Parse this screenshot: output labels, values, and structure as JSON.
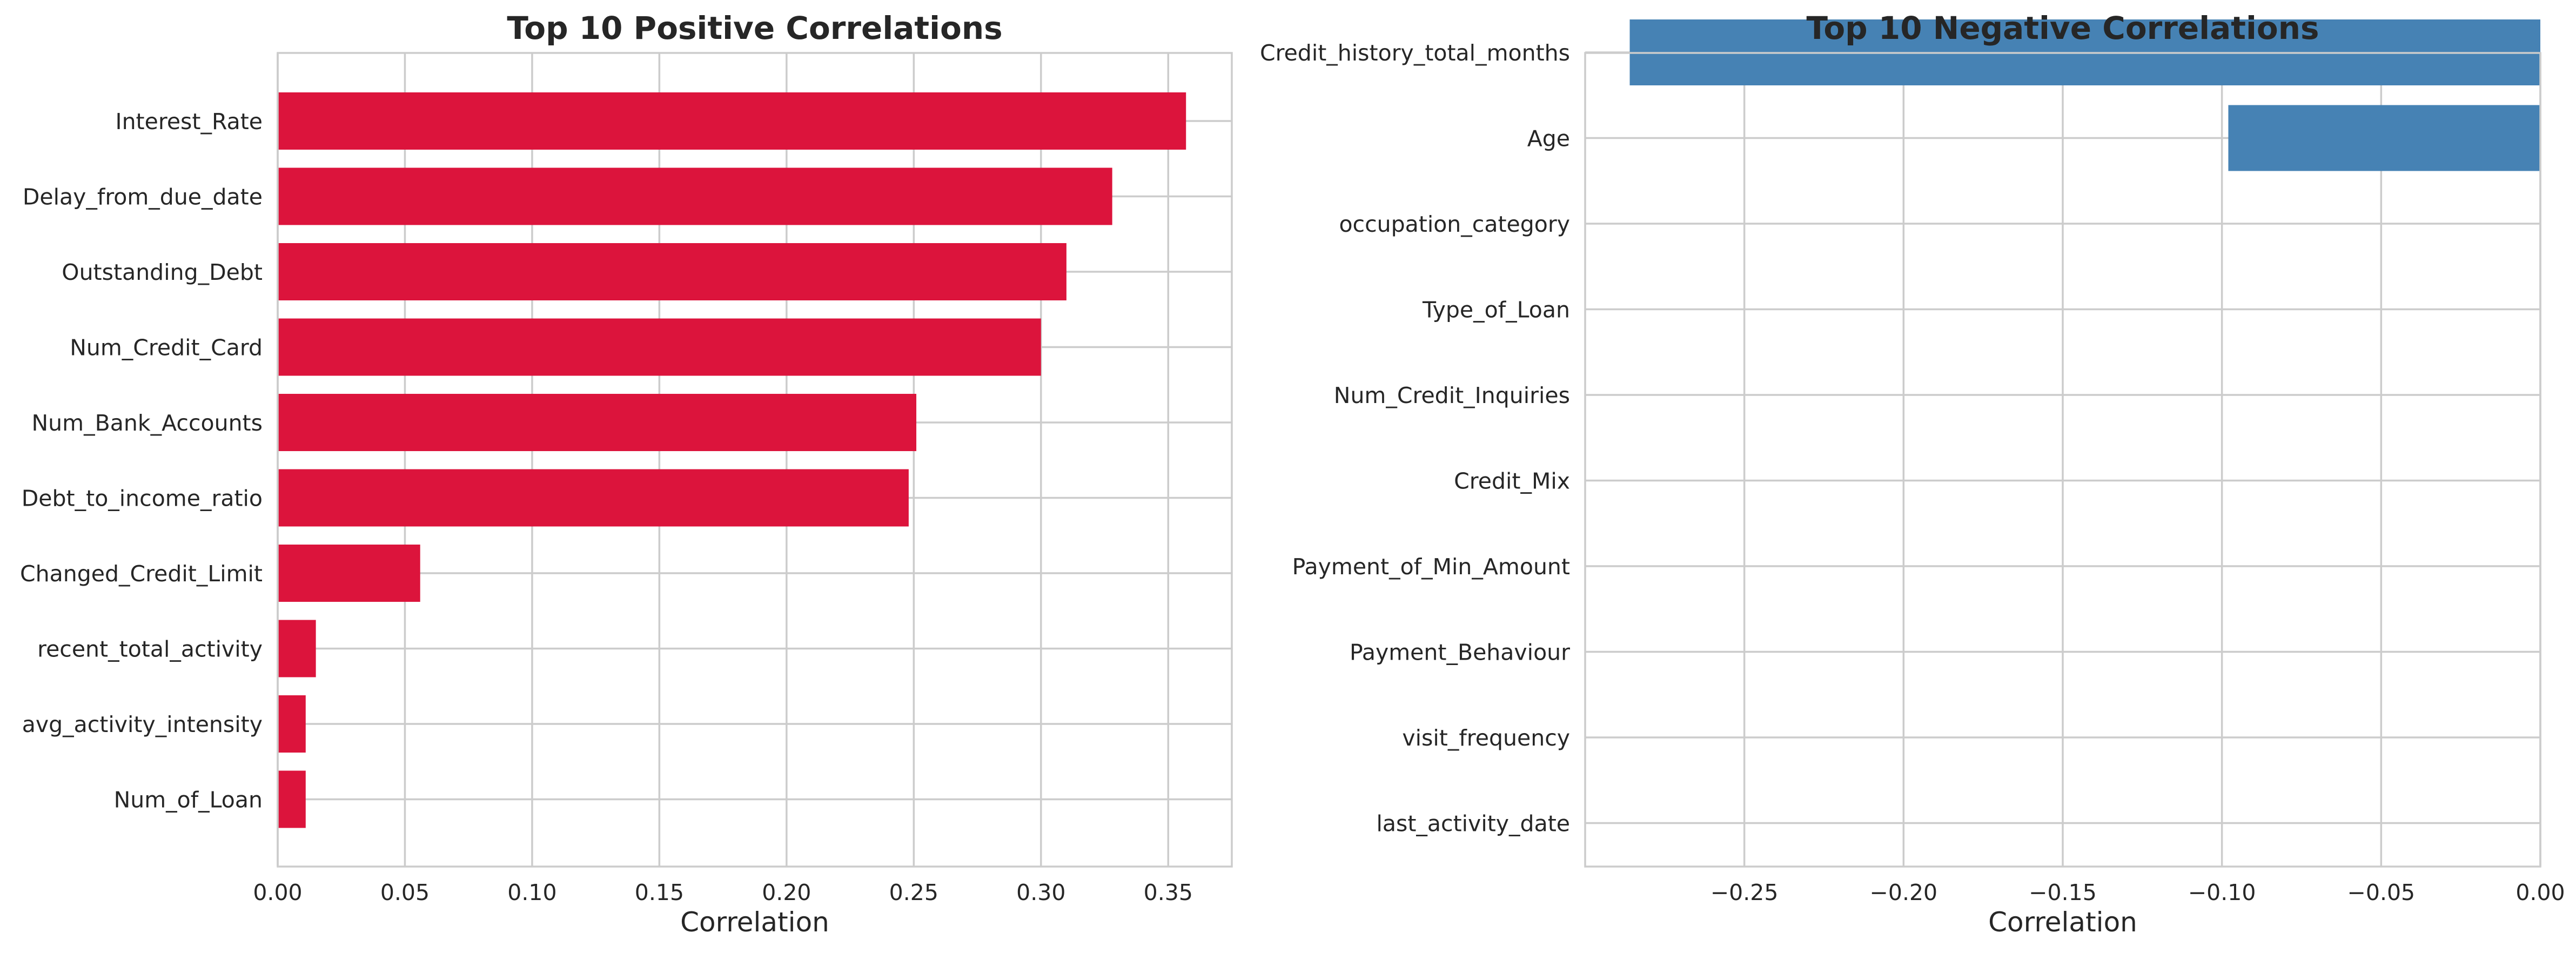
{
  "chart_data": [
    {
      "type": "bar",
      "orientation": "horizontal",
      "title": "Top 10 Positive Correlations",
      "xlabel": "Correlation",
      "ylabel": "",
      "color": "#dc143c",
      "xlim": [
        0,
        0.375
      ],
      "xticks": [
        "0.00",
        "0.05",
        "0.10",
        "0.15",
        "0.20",
        "0.25",
        "0.30",
        "0.35"
      ],
      "categories": [
        "Interest_Rate",
        "Delay_from_due_date",
        "Outstanding_Debt",
        "Num_Credit_Card",
        "Num_Bank_Accounts",
        "Debt_to_income_ratio",
        "Changed_Credit_Limit",
        "recent_total_activity",
        "avg_activity_intensity",
        "Num_of_Loan"
      ],
      "values": [
        0.357,
        0.328,
        0.31,
        0.3,
        0.251,
        0.248,
        0.056,
        0.015,
        0.011,
        0.011
      ],
      "grid": true
    },
    {
      "type": "bar",
      "orientation": "horizontal",
      "title": "Top 10 Negative Correlations",
      "xlabel": "Correlation",
      "ylabel": "",
      "color": "#4682b4",
      "xlim": [
        -0.3,
        0.0
      ],
      "xticks": [
        "−0.25",
        "−0.20",
        "−0.15",
        "−0.10",
        "−0.05",
        "0.00"
      ],
      "categories": [
        "Credit_history_total_months",
        "Age",
        "occupation_category",
        "Type_of_Loan",
        "Num_Credit_Inquiries",
        "Credit_Mix",
        "Payment_of_Min_Amount",
        "Payment_Behaviour",
        "visit_frequency",
        "last_activity_date"
      ],
      "values": [
        -0.286,
        -0.098,
        0,
        0,
        0,
        0,
        0,
        0,
        0,
        0
      ],
      "grid": true
    }
  ]
}
